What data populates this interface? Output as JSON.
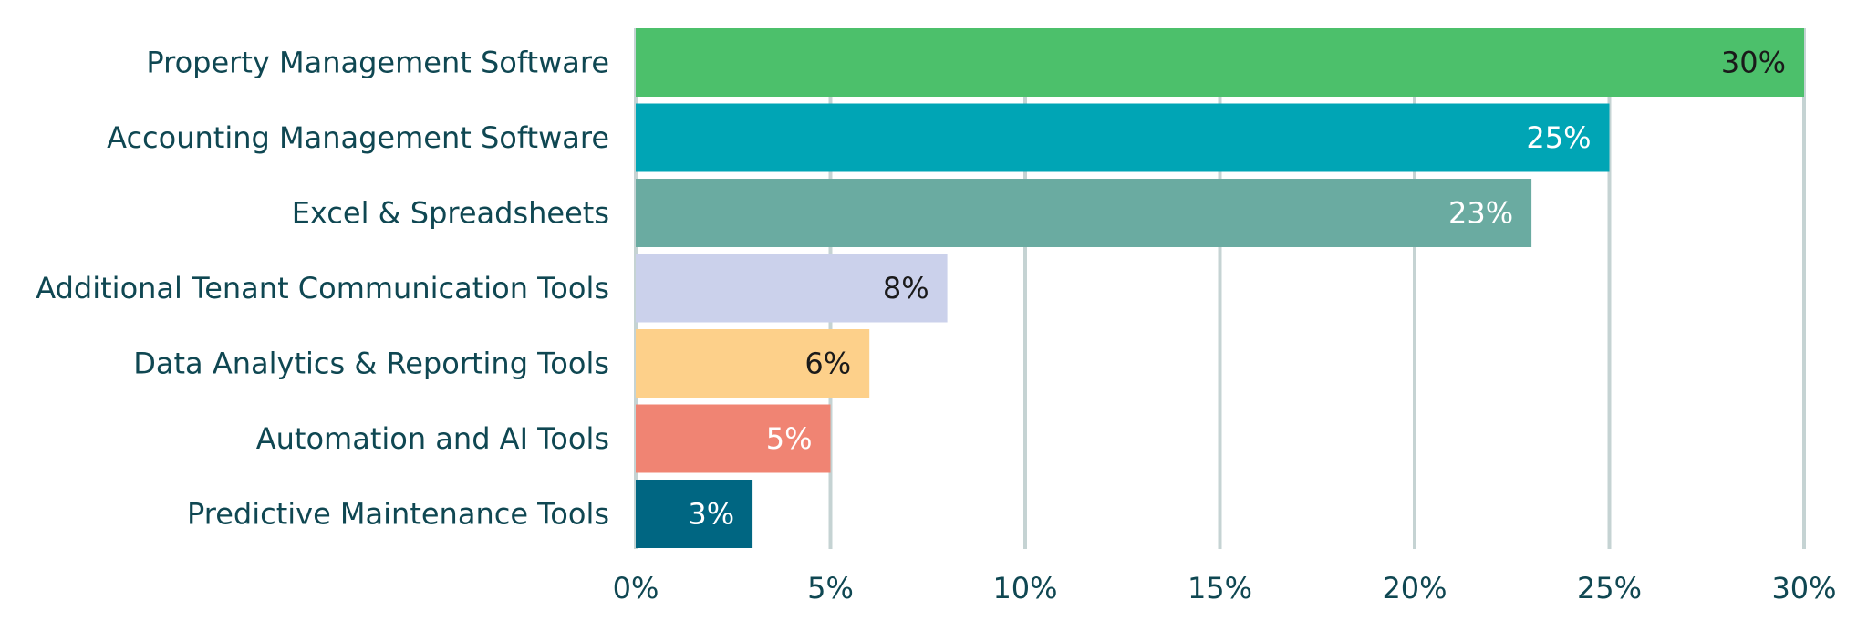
{
  "chart_data": {
    "type": "bar",
    "orientation": "horizontal",
    "categories": [
      "Property Management Software",
      "Accounting Management Software",
      "Excel & Spreadsheets",
      "Additional Tenant Communication Tools",
      "Data Analytics & Reporting Tools",
      "Automation and AI Tools",
      "Predictive Maintenance Tools"
    ],
    "values": [
      30,
      25,
      23,
      8,
      6,
      5,
      3
    ],
    "value_labels": [
      "30%",
      "25%",
      "23%",
      "8%",
      "6%",
      "5%",
      "3%"
    ],
    "bar_colors": [
      "#4cc06b",
      "#00a5b5",
      "#6aaba1",
      "#cbd1eb",
      "#fdd08a",
      "#f08473",
      "#006682"
    ],
    "label_colors": [
      "#1a1a1a",
      "#ffffff",
      "#ffffff",
      "#1a1a1a",
      "#1a1a1a",
      "#ffffff",
      "#ffffff"
    ],
    "xlim": [
      0,
      30
    ],
    "xticks": [
      0,
      5,
      10,
      15,
      20,
      25,
      30
    ],
    "xtick_labels": [
      "0%",
      "5%",
      "10%",
      "15%",
      "20%",
      "25%",
      "30%"
    ],
    "grid": true,
    "grid_axis": "x",
    "title": "",
    "xlabel": "",
    "ylabel": "",
    "colors": {
      "text": "#0f4752",
      "grid": "#c5d3d3"
    }
  }
}
